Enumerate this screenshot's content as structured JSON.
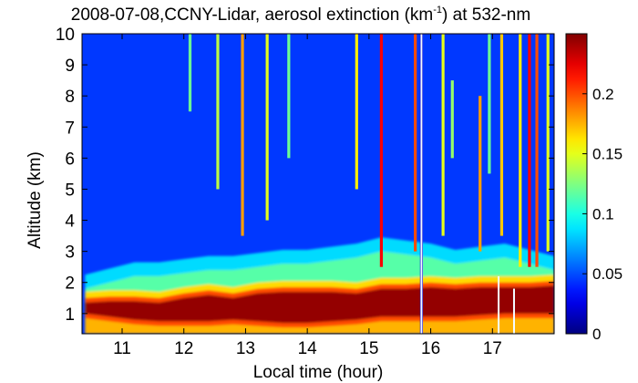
{
  "chart_data": {
    "type": "heatmap",
    "title": {
      "pre": "2008-07-08,CCNY-Lidar, aerosol extinction (km",
      "sup": "-1",
      "post": ") at 532-nm"
    },
    "xlabel": "Local time (hour)",
    "ylabel": "Altitude (km)",
    "xlim": [
      10.35,
      18.0
    ],
    "ylim": [
      0.35,
      10
    ],
    "xticks": [
      11,
      12,
      13,
      14,
      15,
      16,
      17
    ],
    "yticks": [
      1,
      2,
      3,
      4,
      5,
      6,
      7,
      8,
      9,
      10
    ],
    "colorbar": {
      "range": [
        0,
        0.25
      ],
      "ticks": [
        0,
        0.05,
        0.1,
        0.15,
        0.2
      ],
      "tick_labels": [
        "0",
        "0.05",
        "0.1",
        "0.15",
        "0.2"
      ],
      "colormap": "jet"
    },
    "boundary_layer": {
      "times": [
        10.4,
        10.8,
        11.2,
        11.6,
        12.0,
        12.4,
        12.8,
        13.2,
        13.6,
        14.0,
        14.4,
        14.8,
        15.2,
        15.6,
        16.0,
        16.4,
        16.8,
        17.2,
        17.6,
        18.0
      ],
      "core_bottom_km": [
        1.0,
        0.9,
        0.8,
        0.75,
        0.75,
        0.75,
        0.8,
        0.75,
        0.7,
        0.7,
        0.75,
        0.8,
        0.9,
        0.9,
        0.9,
        0.9,
        0.95,
        1.0,
        1.0,
        1.0
      ],
      "core_top_km": [
        1.35,
        1.4,
        1.4,
        1.35,
        1.5,
        1.6,
        1.5,
        1.65,
        1.7,
        1.7,
        1.7,
        1.65,
        1.8,
        1.8,
        1.85,
        1.8,
        1.85,
        1.85,
        1.85,
        1.9
      ],
      "layer_top_km": [
        1.8,
        2.0,
        2.2,
        2.2,
        2.3,
        2.4,
        2.4,
        2.5,
        2.6,
        2.6,
        2.7,
        2.8,
        3.0,
        2.9,
        2.8,
        2.6,
        2.7,
        2.8,
        2.6,
        2.4
      ]
    },
    "cloud_streaks": [
      {
        "t": 12.1,
        "bottom_km": 7.5,
        "top_km": 10,
        "value": 0.12
      },
      {
        "t": 12.55,
        "bottom_km": 5.0,
        "top_km": 10,
        "value": 0.14
      },
      {
        "t": 12.95,
        "bottom_km": 3.5,
        "top_km": 10,
        "value": 0.18
      },
      {
        "t": 13.35,
        "bottom_km": 4.0,
        "top_km": 10,
        "value": 0.15
      },
      {
        "t": 13.7,
        "bottom_km": 6.0,
        "top_km": 10,
        "value": 0.12
      },
      {
        "t": 14.8,
        "bottom_km": 5.0,
        "top_km": 10,
        "value": 0.16
      },
      {
        "t": 15.2,
        "bottom_km": 2.5,
        "top_km": 10,
        "value": 0.22
      },
      {
        "t": 15.75,
        "bottom_km": 3.0,
        "top_km": 10,
        "value": 0.2
      },
      {
        "t": 15.85,
        "bottom_km": 0.35,
        "top_km": 10,
        "value": 0.02
      },
      {
        "t": 16.2,
        "bottom_km": 3.5,
        "top_km": 10,
        "value": 0.15
      },
      {
        "t": 16.35,
        "bottom_km": 6.0,
        "top_km": 8.5,
        "value": 0.13
      },
      {
        "t": 16.8,
        "bottom_km": 3.0,
        "top_km": 8.0,
        "value": 0.18
      },
      {
        "t": 16.95,
        "bottom_km": 5.5,
        "top_km": 10,
        "value": 0.12
      },
      {
        "t": 17.15,
        "bottom_km": 3.5,
        "top_km": 10,
        "value": 0.17
      },
      {
        "t": 17.45,
        "bottom_km": 2.5,
        "top_km": 10,
        "value": 0.16
      },
      {
        "t": 17.6,
        "bottom_km": 2.5,
        "top_km": 10,
        "value": 0.22
      },
      {
        "t": 17.72,
        "bottom_km": 2.5,
        "top_km": 10,
        "value": 0.2
      },
      {
        "t": 17.9,
        "bottom_km": 3.0,
        "top_km": 10,
        "value": 0.15
      }
    ],
    "gaps": [
      {
        "t": 15.85,
        "bottom_km": 0.35,
        "top_km": 10
      },
      {
        "t": 17.1,
        "bottom_km": 0.35,
        "top_km": 2.2
      },
      {
        "t": 17.35,
        "bottom_km": 0.35,
        "top_km": 1.8
      }
    ]
  }
}
